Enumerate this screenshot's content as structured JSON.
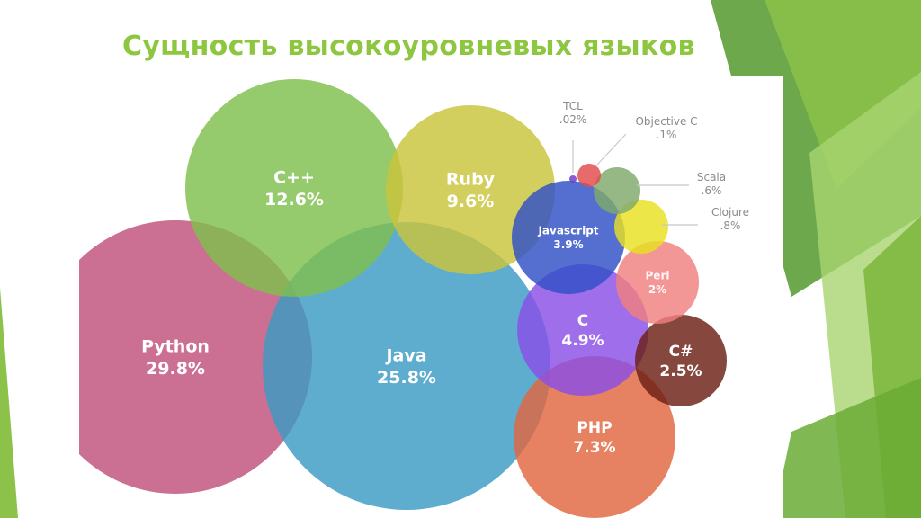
{
  "slide": {
    "title": "Сущность высокоуровневых языков"
  },
  "colors": {
    "accent_green": "#8dc63f",
    "deco_dark": "#5d9e3a",
    "deco_light": "#a8d46f"
  },
  "chart_data": {
    "type": "bubble",
    "unit": "%",
    "series": [
      {
        "language": "Python",
        "value_label": "29.8%",
        "value": 29.8,
        "color": "#c0507a"
      },
      {
        "language": "Java",
        "value_label": "25.8%",
        "value": 25.8,
        "color": "#3a9bc4"
      },
      {
        "language": "C++",
        "value_label": "12.6%",
        "value": 12.6,
        "color": "#7fbf4d"
      },
      {
        "language": "Ruby",
        "value_label": "9.6%",
        "value": 9.6,
        "color": "#c9c43a"
      },
      {
        "language": "PHP",
        "value_label": "7.3%",
        "value": 7.3,
        "color": "#e0673f"
      },
      {
        "language": "C",
        "value_label": "4.9%",
        "value": 4.9,
        "color": "#8a4fe6"
      },
      {
        "language": "Javascript",
        "value_label": "3.9%",
        "value": 3.9,
        "color": "#2f4fc7"
      },
      {
        "language": "C#",
        "value_label": "2.5%",
        "value": 2.5,
        "color": "#6b1f14"
      },
      {
        "language": "Perl",
        "value_label": "2%",
        "value": 2.0,
        "color": "#f07f7f"
      },
      {
        "language": "Clojure",
        "value_label": ".8%",
        "value": 0.8,
        "color": "#e8e020"
      },
      {
        "language": "Scala",
        "value_label": ".6%",
        "value": 0.6,
        "color": "#7fa86a"
      },
      {
        "language": "Objective C",
        "value_label": ".1%",
        "value": 0.1,
        "color": "#e34b4b"
      },
      {
        "language": "TCL",
        "value_label": ".02%",
        "value": 0.02,
        "color": "#6a3cc8"
      }
    ]
  }
}
